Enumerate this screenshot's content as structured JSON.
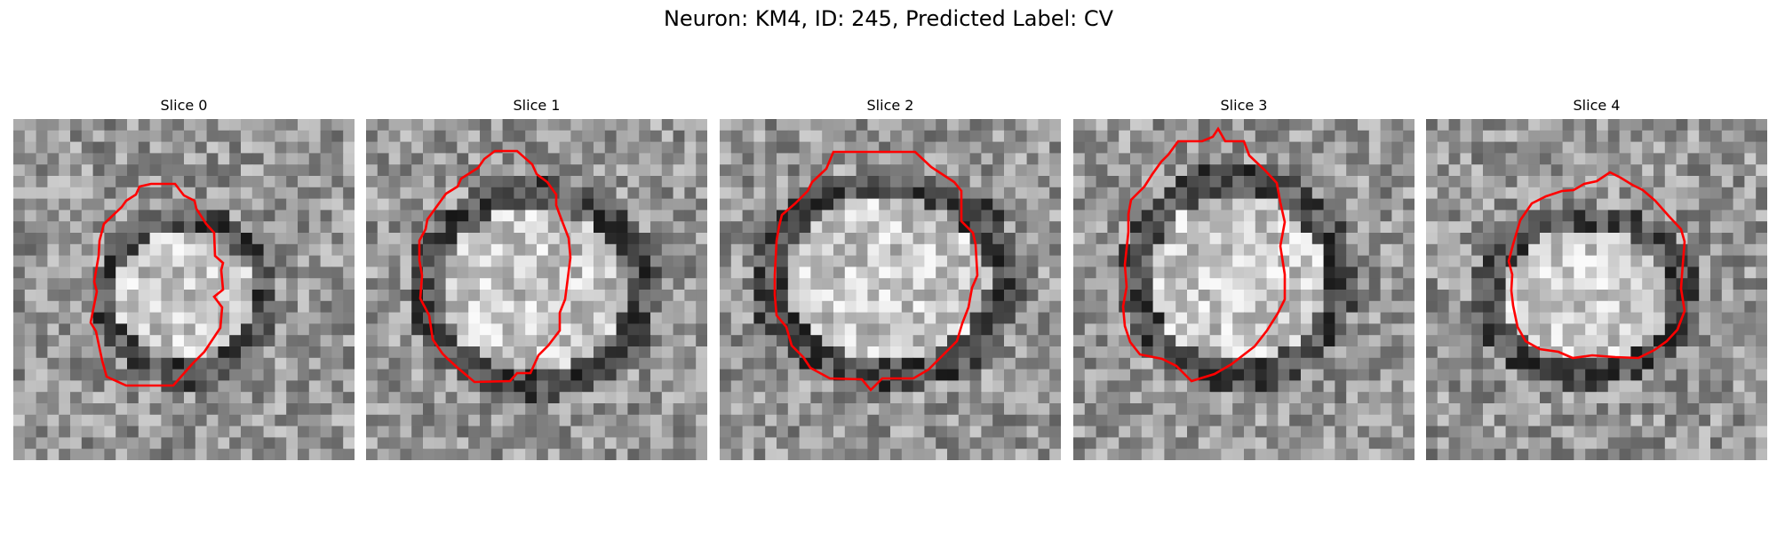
{
  "figure": {
    "title": "Neuron: KM4, ID: 245, Predicted Label: CV"
  },
  "panels": [
    {
      "title": "Slice 0",
      "contour_color": "#ff0000"
    },
    {
      "title": "Slice 1",
      "contour_color": "#ff0000"
    },
    {
      "title": "Slice 2",
      "contour_color": "#ff0000"
    },
    {
      "title": "Slice 3",
      "contour_color": "#ff0000"
    },
    {
      "title": "Slice 4",
      "contour_color": "#ff0000"
    }
  ]
}
